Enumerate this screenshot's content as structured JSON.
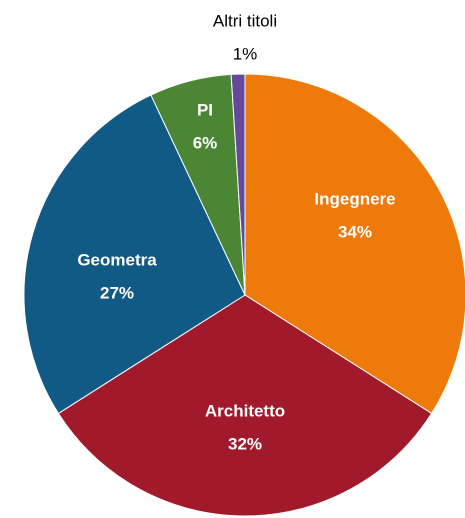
{
  "chart_data": {
    "type": "pie",
    "categories": [
      "Ingegnere",
      "Architetto",
      "Geometra",
      "PI",
      "Altri titoli"
    ],
    "values": [
      34,
      32,
      27,
      6,
      1
    ],
    "value_labels": [
      "34%",
      "32%",
      "27%",
      "6%",
      "1%"
    ],
    "colors": [
      "#ee7a0b",
      "#a01a2c",
      "#115a86",
      "#4b8634",
      "#65489a"
    ]
  }
}
